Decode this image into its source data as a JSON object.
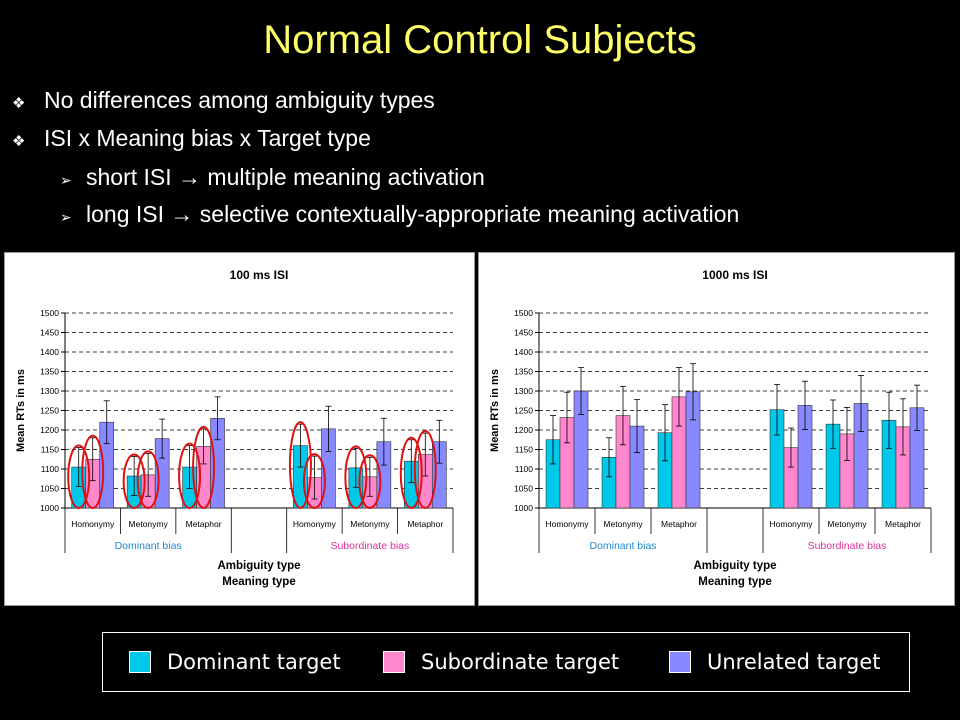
{
  "slide": {
    "title": "Normal Control Subjects",
    "bullets": [
      {
        "level": 1,
        "text": "No differences among ambiguity types"
      },
      {
        "level": 1,
        "text": "ISI x Meaning bias x Target type"
      },
      {
        "level": 2,
        "text": "short ISI → multiple meaning activation"
      },
      {
        "level": 2,
        "text": "long ISI → selective contextually-appropriate meaning activation"
      }
    ],
    "bullet_icons": {
      "level1": "diamond-cluster-icon",
      "level2": "arrow-chevron-icon"
    }
  },
  "legend": {
    "items": [
      {
        "label": "Dominant target",
        "color": "#00c8e8"
      },
      {
        "label": "Subordinate target",
        "color": "#ff88cc"
      },
      {
        "label": "Unrelated target",
        "color": "#8888ff"
      }
    ]
  },
  "chart_data": [
    {
      "type": "bar",
      "title": "100 ms ISI",
      "xlabel": "Ambiguity type",
      "xlabel2": "Meaning type",
      "ylabel": "Mean RTs in ms",
      "ylim": [
        1000,
        1500
      ],
      "yticks": [
        1000,
        1050,
        1100,
        1150,
        1200,
        1250,
        1300,
        1350,
        1400,
        1450,
        1500
      ],
      "grid": true,
      "groups": [
        {
          "label": "Dominant bias",
          "color": "#2288cc",
          "categories": [
            "Homonymy",
            "Metonymy",
            "Metaphor"
          ]
        },
        {
          "label": "Subordinate bias",
          "color": "#dd3399",
          "categories": [
            "Homonymy",
            "Metonymy",
            "Metaphor"
          ]
        }
      ],
      "series": [
        {
          "name": "Dominant target",
          "values": [
            1105,
            1082,
            1105,
            1160,
            1103,
            1120
          ]
        },
        {
          "name": "Subordinate target",
          "values": [
            1125,
            1085,
            1158,
            1078,
            1080,
            1137
          ]
        },
        {
          "name": "Unrelated target",
          "values": [
            1220,
            1178,
            1230,
            1203,
            1170,
            1170
          ]
        }
      ],
      "errors": [
        [
          50,
          50,
          55,
          55,
          50,
          55
        ],
        [
          55,
          55,
          45,
          55,
          50,
          55
        ],
        [
          55,
          50,
          55,
          58,
          60,
          55
        ]
      ],
      "circled_pairs": [
        0,
        1,
        2,
        3,
        4,
        5
      ]
    },
    {
      "type": "bar",
      "title": "1000 ms ISI",
      "xlabel": "Ambiguity type",
      "xlabel2": "Meaning type",
      "ylabel": "Mean RTs in ms",
      "ylim": [
        1000,
        1500
      ],
      "yticks": [
        1000,
        1050,
        1100,
        1150,
        1200,
        1250,
        1300,
        1350,
        1400,
        1450,
        1500
      ],
      "grid": true,
      "groups": [
        {
          "label": "Dominant bias",
          "color": "#2288cc",
          "categories": [
            "Homonymy",
            "Metonymy",
            "Metaphor"
          ]
        },
        {
          "label": "Subordinate bias",
          "color": "#dd3399",
          "categories": [
            "Homonymy",
            "Metonymy",
            "Metaphor"
          ]
        }
      ],
      "series": [
        {
          "name": "Dominant target",
          "values": [
            1175,
            1130,
            1193,
            1252,
            1215,
            1225
          ]
        },
        {
          "name": "Subordinate target",
          "values": [
            1232,
            1237,
            1285,
            1155,
            1190,
            1208
          ]
        },
        {
          "name": "Unrelated target",
          "values": [
            1300,
            1210,
            1298,
            1263,
            1268,
            1257
          ]
        }
      ],
      "errors": [
        [
          62,
          50,
          72,
          65,
          62,
          72
        ],
        [
          65,
          75,
          75,
          50,
          68,
          72
        ],
        [
          60,
          68,
          72,
          62,
          72,
          58
        ]
      ],
      "circled_pairs": []
    }
  ]
}
